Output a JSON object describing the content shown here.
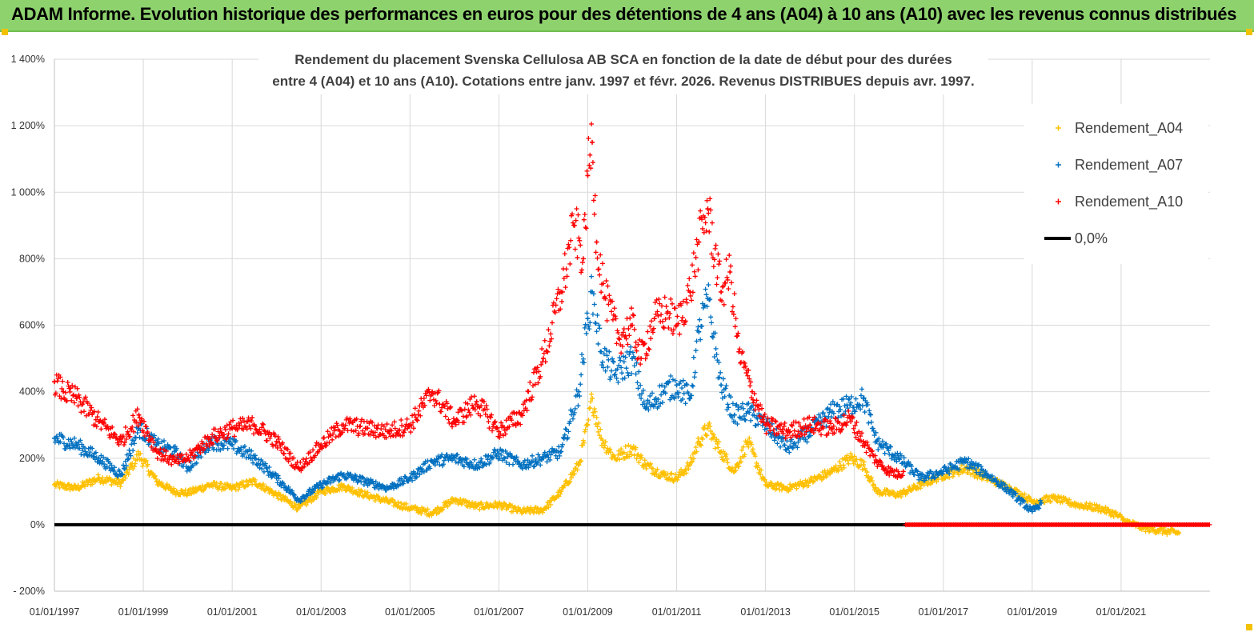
{
  "banner": {
    "title": "ADAM Informe. Evolution historique des performances en euros pour des détentions de 4 ans (A04) à 10 ans (A10) avec les revenus connus distribués"
  },
  "colors": {
    "banner_bg": "#8ed26e",
    "a04": "#ffc000",
    "a07": "#0070c0",
    "a10": "#ff0000",
    "zero": "#000000"
  },
  "chart_data": {
    "type": "scatter",
    "title_lines": [
      "Rendement du placement Svenska Cellulosa AB SCA en fonction de la date de début pour des durées",
      "entre 4 (A04) et 10 ans (A10). Cotations entre janv. 1997 et févr. 2026. Revenus DISTRIBUES depuis avr. 1997."
    ],
    "xlabel": "",
    "ylabel": "",
    "ylim": [
      -200,
      1400
    ],
    "xlim": [
      1997.0,
      2023.0
    ],
    "y_ticks": [
      {
        "value": -200,
        "label": "- 200%"
      },
      {
        "value": 0,
        "label": "0%"
      },
      {
        "value": 200,
        "label": "200%"
      },
      {
        "value": 400,
        "label": "400%"
      },
      {
        "value": 600,
        "label": "600%"
      },
      {
        "value": 800,
        "label": "800%"
      },
      {
        "value": 1000,
        "label": "1 000%"
      },
      {
        "value": 1200,
        "label": "1 200%"
      },
      {
        "value": 1400,
        "label": "1 400%"
      }
    ],
    "x_ticks": [
      {
        "value": 1997,
        "label": "01/01/1997"
      },
      {
        "value": 1999,
        "label": "01/01/1999"
      },
      {
        "value": 2001,
        "label": "01/01/2001"
      },
      {
        "value": 2003,
        "label": "01/01/2003"
      },
      {
        "value": 2005,
        "label": "01/01/2005"
      },
      {
        "value": 2007,
        "label": "01/01/2007"
      },
      {
        "value": 2009,
        "label": "01/01/2009"
      },
      {
        "value": 2011,
        "label": "01/01/2011"
      },
      {
        "value": 2013,
        "label": "01/01/2013"
      },
      {
        "value": 2015,
        "label": "01/01/2015"
      },
      {
        "value": 2017,
        "label": "01/01/2017"
      },
      {
        "value": 2019,
        "label": "01/01/2019"
      },
      {
        "value": 2021,
        "label": "01/01/2021"
      }
    ],
    "legend_position": "top-right",
    "series": [
      {
        "name": "Rendement_A04",
        "color": "#ffc000",
        "marker": "+",
        "x": [
          1997.0,
          1997.5,
          1998.0,
          1998.5,
          1998.9,
          1999.3,
          1999.7,
          2000.0,
          2000.5,
          2001.0,
          2001.5,
          2002.0,
          2002.5,
          2003.0,
          2003.5,
          2004.0,
          2004.5,
          2005.0,
          2005.5,
          2006.0,
          2006.5,
          2007.0,
          2007.5,
          2008.0,
          2008.4,
          2008.8,
          2009.0,
          2009.1,
          2009.3,
          2009.6,
          2010.0,
          2010.3,
          2010.7,
          2011.0,
          2011.3,
          2011.5,
          2011.7,
          2012.0,
          2012.3,
          2012.6,
          2013.0,
          2013.5,
          2014.0,
          2014.5,
          2014.9,
          2015.2,
          2015.5,
          2016.0,
          2016.5,
          2017.0,
          2017.5,
          2018.0,
          2018.5,
          2019.0,
          2019.5,
          2020.0,
          2020.5,
          2020.9,
          2021.1,
          2021.5,
          2022.0,
          2022.3
        ],
        "y": [
          120,
          110,
          140,
          125,
          210,
          130,
          100,
          95,
          120,
          110,
          130,
          90,
          50,
          100,
          115,
          90,
          70,
          50,
          35,
          75,
          55,
          60,
          40,
          45,
          100,
          180,
          300,
          380,
          260,
          200,
          230,
          180,
          150,
          140,
          180,
          250,
          290,
          220,
          160,
          250,
          120,
          110,
          130,
          160,
          200,
          180,
          100,
          90,
          120,
          150,
          170,
          140,
          110,
          70,
          80,
          60,
          50,
          30,
          10,
          -10,
          -20,
          -25
        ]
      },
      {
        "name": "Rendement_A07",
        "color": "#0070c0",
        "marker": "+",
        "x": [
          1997.0,
          1997.5,
          1998.0,
          1998.5,
          1998.9,
          1999.3,
          1999.7,
          2000.0,
          2000.5,
          2001.0,
          2001.5,
          2002.0,
          2002.5,
          2003.0,
          2003.5,
          2004.0,
          2004.5,
          2005.0,
          2005.5,
          2006.0,
          2006.5,
          2007.0,
          2007.5,
          2008.0,
          2008.4,
          2008.8,
          2009.0,
          2009.1,
          2009.3,
          2009.6,
          2010.0,
          2010.3,
          2010.7,
          2011.0,
          2011.3,
          2011.5,
          2011.7,
          2012.0,
          2012.3,
          2012.6,
          2013.0,
          2013.5,
          2014.0,
          2014.5,
          2014.9,
          2015.2,
          2015.5,
          2016.0,
          2016.5,
          2017.0,
          2017.5,
          2018.0,
          2018.5,
          2019.0,
          2019.2
        ],
        "y": [
          260,
          240,
          200,
          150,
          290,
          240,
          220,
          170,
          250,
          240,
          200,
          140,
          75,
          120,
          150,
          130,
          110,
          140,
          190,
          200,
          180,
          215,
          180,
          200,
          220,
          400,
          620,
          700,
          520,
          450,
          500,
          350,
          400,
          420,
          380,
          580,
          680,
          420,
          330,
          340,
          300,
          230,
          280,
          340,
          360,
          380,
          250,
          200,
          140,
          160,
          190,
          150,
          100,
          40,
          65
        ]
      },
      {
        "name": "Rendement_A10",
        "color": "#ff0000",
        "marker": "+",
        "x": [
          1997.0,
          1997.2,
          1997.5,
          1998.0,
          1998.5,
          1998.9,
          1999.3,
          1999.7,
          2000.0,
          2000.5,
          2001.0,
          2001.5,
          2002.0,
          2002.5,
          2003.0,
          2003.5,
          2004.0,
          2004.5,
          2005.0,
          2005.5,
          2006.0,
          2006.5,
          2007.0,
          2007.5,
          2008.0,
          2008.4,
          2008.7,
          2008.9,
          2009.0,
          2009.1,
          2009.2,
          2009.4,
          2009.7,
          2010.0,
          2010.2,
          2010.5,
          2010.8,
          2011.0,
          2011.3,
          2011.5,
          2011.7,
          2012.0,
          2012.2,
          2012.4,
          2012.7,
          2013.0,
          2013.5,
          2014.0,
          2014.5,
          2014.9,
          2015.2,
          2015.5,
          2015.8,
          2016.0,
          2016.1
        ],
        "y": [
          430,
          400,
          380,
          310,
          250,
          330,
          220,
          190,
          200,
          260,
          290,
          300,
          250,
          170,
          240,
          300,
          290,
          280,
          300,
          400,
          310,
          370,
          280,
          330,
          500,
          700,
          900,
          800,
          1050,
          1150,
          850,
          680,
          560,
          600,
          500,
          620,
          640,
          600,
          700,
          850,
          950,
          700,
          760,
          520,
          400,
          300,
          280,
          300,
          290,
          320,
          250,
          190,
          160,
          150,
          160
        ]
      },
      {
        "name": "0,0%",
        "color": "#000000",
        "marker": "line",
        "x": [
          1997.0,
          2016.15
        ],
        "y": [
          0,
          0
        ]
      }
    ],
    "zero_band_a10": {
      "x_start": 2016.15,
      "x_end": 2023.0,
      "y": 0
    }
  }
}
